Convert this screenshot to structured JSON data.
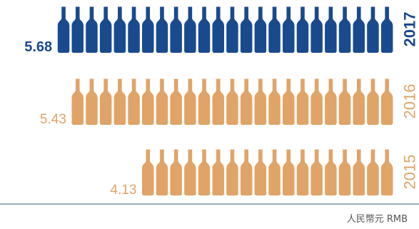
{
  "chart_data": {
    "type": "bar",
    "style": "pictograph (bottle icons)",
    "orientation": "horizontal",
    "categories": [
      "2017",
      "2016",
      "2015"
    ],
    "values": [
      5.68,
      5.43,
      4.13
    ],
    "value_labels": [
      "5.68",
      "5.43",
      "4.13"
    ],
    "highlight": "2017",
    "unit": "人民幣元 RMB"
  },
  "colors": {
    "highlight": "#1a4a8e",
    "default": "#e0a468",
    "axis": "#3a5a88",
    "unit_text": "#555555"
  }
}
